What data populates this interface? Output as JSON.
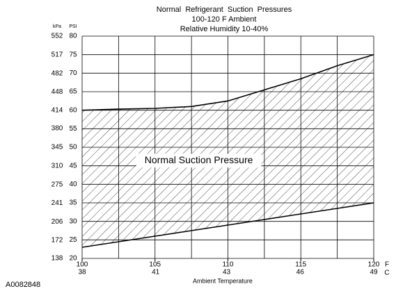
{
  "chart_data": {
    "type": "range-area",
    "title": "Normal  Refrigerant  Suction  Pressures",
    "subtitle": [
      "100-120 F Ambient",
      "Relative Humidity 10-40%"
    ],
    "annotation": "Normal Suction Pressure",
    "x_label": "Ambient Temperature",
    "x_unit": "F",
    "x2_unit": "C",
    "y_label": "PSI",
    "y2_label": "kPa",
    "figure_id": "A0082848",
    "x": [
      100,
      102.5,
      105,
      107.5,
      110,
      112.5,
      115,
      117.5,
      120
    ],
    "upper": [
      60,
      60.3,
      60.5,
      61,
      62.5,
      65.5,
      68.5,
      72,
      75
    ],
    "lower": [
      23,
      24.5,
      26,
      27.5,
      29,
      30.5,
      32,
      33.5,
      35
    ],
    "color": "#000000",
    "xlim": [
      100,
      120
    ],
    "xticks": [
      100,
      105,
      110,
      115,
      120
    ],
    "xgrid": [
      100,
      102.5,
      105,
      107.5,
      110,
      112.5,
      115,
      117.5,
      120
    ],
    "x2lim": [
      37.8,
      48.9
    ],
    "x2ticks": [
      {
        "value": 37.8,
        "label": "38"
      },
      {
        "value": 40.6,
        "label": "41"
      },
      {
        "value": 43.3,
        "label": "43"
      },
      {
        "value": 46.1,
        "label": "46"
      },
      {
        "value": 48.9,
        "label": "49"
      }
    ],
    "ylim": [
      20,
      80
    ],
    "yticks": [
      20,
      25,
      30,
      35,
      40,
      45,
      50,
      55,
      60,
      65,
      70,
      75,
      80
    ],
    "y2lim": [
      138,
      552
    ],
    "y2ticks": [
      138,
      172,
      206,
      241,
      275,
      310,
      345,
      380,
      414,
      448,
      482,
      517,
      552
    ],
    "grid": true
  }
}
